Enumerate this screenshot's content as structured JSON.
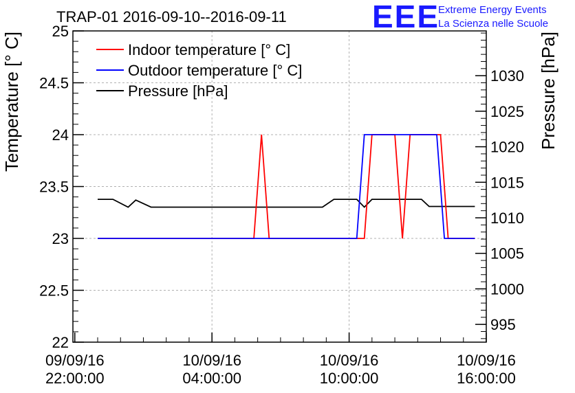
{
  "chart_data": {
    "type": "line",
    "title": "TRAP-01 2016-09-10--2016-09-11",
    "logo": {
      "mark": "EEE",
      "line1": "Extreme Energy Events",
      "line2": "La Scienza nelle Scuole"
    },
    "ylabel": "Temperature [° C]",
    "y2label": "Pressure [hPa]",
    "ylim": [
      22,
      25
    ],
    "y2lim": [
      992.5,
      1036.3
    ],
    "yticks": [
      "22",
      "22.5",
      "23",
      "23.5",
      "24",
      "24.5",
      "25"
    ],
    "y2ticks": [
      "995",
      "1000",
      "1005",
      "1010",
      "1015",
      "1020",
      "1025",
      "1030"
    ],
    "xlim": [
      "2016-09-09 21:55",
      "2016-09-10 16:00"
    ],
    "xticks": [
      {
        "date": "09/09/16",
        "time": "22:00:00",
        "at": "2016-09-09 22:00"
      },
      {
        "date": "10/09/16",
        "time": "04:00:00",
        "at": "2016-09-10 04:00"
      },
      {
        "date": "10/09/16",
        "time": "10:00:00",
        "at": "2016-09-10 10:00"
      },
      {
        "date": "10/09/16",
        "time": "16:00:00",
        "at": "2016-09-10 16:00"
      }
    ],
    "grid": true,
    "legend_position": "top-left",
    "series": [
      {
        "name": "Indoor temperature [° C]",
        "color": "#ff0000",
        "axis": "left",
        "x": [
          "2016-09-09 23:00",
          "2016-09-10 05:50",
          "2016-09-10 06:10",
          "2016-09-10 06:30",
          "2016-09-10 10:40",
          "2016-09-10 11:00",
          "2016-09-10 11:20",
          "2016-09-10 11:40",
          "2016-09-10 12:00",
          "2016-09-10 12:20",
          "2016-09-10 12:40",
          "2016-09-10 13:00",
          "2016-09-10 13:20",
          "2016-09-10 13:40",
          "2016-09-10 14:00",
          "2016-09-10 14:20",
          "2016-09-10 15:30"
        ],
        "values": [
          23,
          23,
          24,
          23,
          23,
          24,
          24,
          24,
          24,
          23,
          24,
          24,
          24,
          24,
          24,
          23,
          23
        ]
      },
      {
        "name": "Outdoor temperature [° C]",
        "color": "#0000ff",
        "axis": "left",
        "x": [
          "2016-09-09 23:00",
          "2016-09-10 10:20",
          "2016-09-10 10:40",
          "2016-09-10 13:50",
          "2016-09-10 14:10",
          "2016-09-10 15:30"
        ],
        "values": [
          23,
          23,
          24,
          24,
          23,
          23
        ]
      },
      {
        "name": "Pressure [hPa]",
        "color": "#000000",
        "axis": "right",
        "x": [
          "2016-09-09 23:00",
          "2016-09-09 23:40",
          "2016-09-10 00:20",
          "2016-09-10 00:40",
          "2016-09-10 01:20",
          "2016-09-10 08:50",
          "2016-09-10 09:20",
          "2016-09-10 10:20",
          "2016-09-10 10:40",
          "2016-09-10 11:00",
          "2016-09-10 12:20",
          "2016-09-10 12:40",
          "2016-09-10 13:10",
          "2016-09-10 13:30",
          "2016-09-10 15:30"
        ],
        "values": [
          1012.6,
          1012.6,
          1011.5,
          1012.5,
          1011.5,
          1011.5,
          1012.6,
          1012.6,
          1011.5,
          1012.6,
          1012.6,
          1012.6,
          1012.6,
          1011.6,
          1011.6
        ]
      }
    ]
  }
}
